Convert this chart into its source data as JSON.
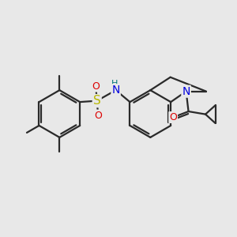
{
  "background_color": "#e8e8e8",
  "bond_color": "#2a2a2a",
  "bond_width": 1.6,
  "atom_colors": {
    "S": "#b8b800",
    "N": "#0000dd",
    "O": "#dd0000",
    "H": "#007777",
    "C": "#2a2a2a"
  },
  "figsize": [
    3.0,
    3.0
  ],
  "dpi": 100,
  "xlim": [
    0,
    10
  ],
  "ylim": [
    1,
    9
  ]
}
